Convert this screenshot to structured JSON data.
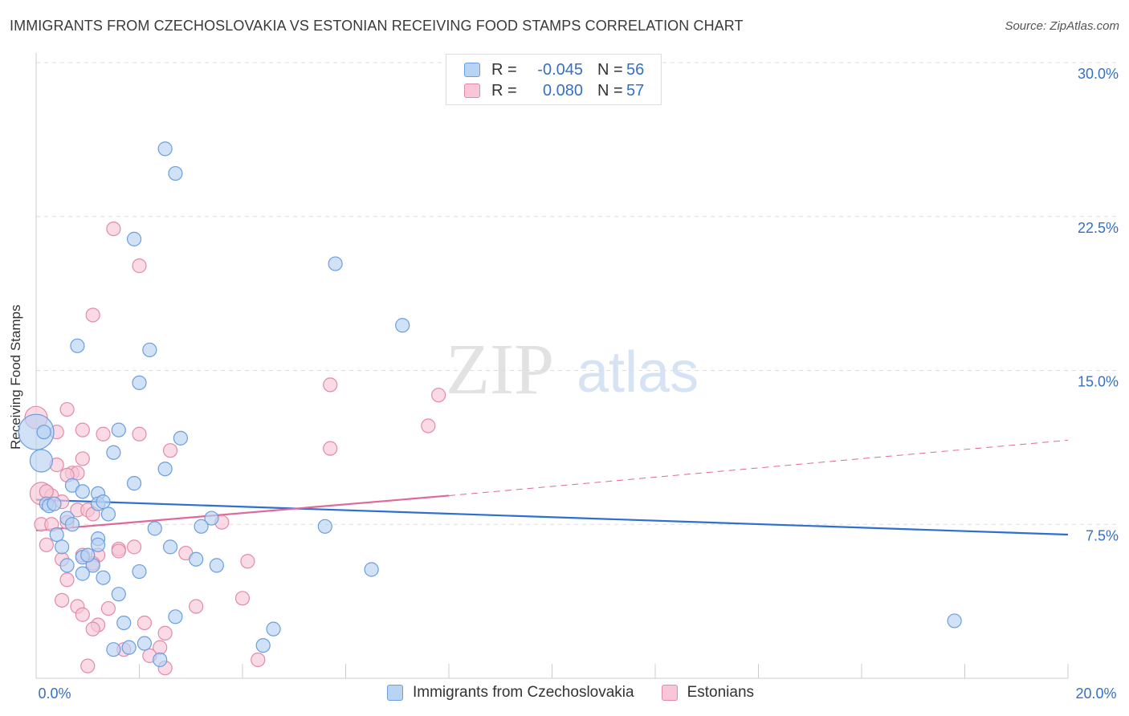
{
  "header": {
    "title": "IMMIGRANTS FROM CZECHOSLOVAKIA VS ESTONIAN RECEIVING FOOD STAMPS CORRELATION CHART",
    "source": "Source: ZipAtlas.com"
  },
  "watermark": {
    "part1": "ZIP",
    "part2": "atlas"
  },
  "legend": {
    "rows": [
      {
        "r_label": "R =",
        "r_value": "-0.045",
        "n_label": "N =",
        "n_value": "56"
      },
      {
        "r_label": "R =",
        "r_value": "0.080",
        "n_label": "N =",
        "n_value": "57"
      }
    ]
  },
  "colors": {
    "series1_fill": "#b9d3f3",
    "series1_stroke": "#6a9ee0",
    "series1_line": "#2f6fd0",
    "series2_fill": "#f8c6d5",
    "series2_stroke": "#e48aa8",
    "series2_line": "#e0689a",
    "tick_text": "#3670c4",
    "grid": "#dddddd"
  },
  "chart_data": {
    "type": "scatter",
    "title": "IMMIGRANTS FROM CZECHOSLOVAKIA VS ESTONIAN RECEIVING FOOD STAMPS CORRELATION CHART",
    "xlabel": "",
    "ylabel": "Receiving Food Stamps",
    "xlim": [
      0,
      20
    ],
    "ylim": [
      0,
      30
    ],
    "x_tick_labels": [
      "0.0%",
      "20.0%"
    ],
    "y_ticks": [
      7.5,
      15.0,
      22.5,
      30.0
    ],
    "y_tick_labels": [
      "7.5%",
      "15.0%",
      "22.5%",
      "30.0%"
    ],
    "grid": true,
    "legend_position": "top-center",
    "series": [
      {
        "name": "Immigrants from Czechoslovakia",
        "r": -0.045,
        "n": 56,
        "trend": {
          "x0": 0,
          "y0": 8.7,
          "x1": 20,
          "y1": 7.0
        },
        "points": [
          [
            2.5,
            25.8
          ],
          [
            2.7,
            24.6
          ],
          [
            1.9,
            21.4
          ],
          [
            5.8,
            20.2
          ],
          [
            7.1,
            17.2
          ],
          [
            0.8,
            16.2
          ],
          [
            2.2,
            16.0
          ],
          [
            2.0,
            14.4
          ],
          [
            1.6,
            12.1
          ],
          [
            2.8,
            11.7
          ],
          [
            0.0,
            12.0
          ],
          [
            1.5,
            11.0
          ],
          [
            0.1,
            10.6
          ],
          [
            2.5,
            10.2
          ],
          [
            1.9,
            9.5
          ],
          [
            0.7,
            9.4
          ],
          [
            0.9,
            9.1
          ],
          [
            1.2,
            9.0
          ],
          [
            0.2,
            8.5
          ],
          [
            1.2,
            8.5
          ],
          [
            1.3,
            8.6
          ],
          [
            1.4,
            8.0
          ],
          [
            0.6,
            7.8
          ],
          [
            3.4,
            7.8
          ],
          [
            0.4,
            7.0
          ],
          [
            2.3,
            7.3
          ],
          [
            3.2,
            7.4
          ],
          [
            5.6,
            7.4
          ],
          [
            1.2,
            6.8
          ],
          [
            1.2,
            6.5
          ],
          [
            0.5,
            6.4
          ],
          [
            2.6,
            6.4
          ],
          [
            0.6,
            5.5
          ],
          [
            0.9,
            5.9
          ],
          [
            3.1,
            5.8
          ],
          [
            1.1,
            5.5
          ],
          [
            3.5,
            5.5
          ],
          [
            6.5,
            5.3
          ],
          [
            2.0,
            5.2
          ],
          [
            0.9,
            5.1
          ],
          [
            1.3,
            4.9
          ],
          [
            1.6,
            4.1
          ],
          [
            2.7,
            3.0
          ],
          [
            1.7,
            2.7
          ],
          [
            4.6,
            2.4
          ],
          [
            17.8,
            2.8
          ],
          [
            1.5,
            1.4
          ],
          [
            2.1,
            1.7
          ],
          [
            2.4,
            0.9
          ],
          [
            4.4,
            1.6
          ],
          [
            0.25,
            8.4
          ],
          [
            0.35,
            8.5
          ],
          [
            1.8,
            1.5
          ],
          [
            0.7,
            7.5
          ],
          [
            1.0,
            6.0
          ],
          [
            0.15,
            12.0
          ]
        ],
        "sizes": [
          1,
          1,
          1,
          1,
          1,
          1,
          1,
          1,
          1,
          1,
          3,
          1,
          2,
          1,
          1,
          1,
          1,
          1,
          1,
          1,
          1,
          1,
          1,
          1,
          1,
          1,
          1,
          1,
          1,
          1,
          1,
          1,
          1,
          1,
          1,
          1,
          1,
          1,
          1,
          1,
          1,
          1,
          1,
          1,
          1,
          1,
          1,
          1,
          1,
          1,
          1,
          1,
          1,
          1,
          1,
          1
        ]
      },
      {
        "name": "Estonians",
        "r": 0.08,
        "n": 57,
        "trend": {
          "x0": 0,
          "y0": 7.2,
          "x1": 8.0,
          "y1": 8.9,
          "dash_x1": 20,
          "dash_y1": 11.6
        },
        "points": [
          [
            1.5,
            21.9
          ],
          [
            2.0,
            20.1
          ],
          [
            1.1,
            17.7
          ],
          [
            5.7,
            14.3
          ],
          [
            7.8,
            13.8
          ],
          [
            0.6,
            13.1
          ],
          [
            7.6,
            12.3
          ],
          [
            0.0,
            12.7
          ],
          [
            1.3,
            11.9
          ],
          [
            2.0,
            11.9
          ],
          [
            0.9,
            12.1
          ],
          [
            0.4,
            12.0
          ],
          [
            2.6,
            11.1
          ],
          [
            5.7,
            11.2
          ],
          [
            0.9,
            10.7
          ],
          [
            0.4,
            10.4
          ],
          [
            0.7,
            10.0
          ],
          [
            0.8,
            10.0
          ],
          [
            0.1,
            9.0
          ],
          [
            0.3,
            8.9
          ],
          [
            0.5,
            8.6
          ],
          [
            0.8,
            8.2
          ],
          [
            1.0,
            8.2
          ],
          [
            0.1,
            7.5
          ],
          [
            0.6,
            7.6
          ],
          [
            3.6,
            7.6
          ],
          [
            0.3,
            7.5
          ],
          [
            0.2,
            6.5
          ],
          [
            1.6,
            6.3
          ],
          [
            1.6,
            6.2
          ],
          [
            1.9,
            6.4
          ],
          [
            2.9,
            6.1
          ],
          [
            0.9,
            6.0
          ],
          [
            1.2,
            6.0
          ],
          [
            0.5,
            5.8
          ],
          [
            4.1,
            5.7
          ],
          [
            0.6,
            4.8
          ],
          [
            1.1,
            5.6
          ],
          [
            0.5,
            3.8
          ],
          [
            0.8,
            3.5
          ],
          [
            1.4,
            3.4
          ],
          [
            3.1,
            3.5
          ],
          [
            4.0,
            3.9
          ],
          [
            0.9,
            3.1
          ],
          [
            1.2,
            2.6
          ],
          [
            2.1,
            2.7
          ],
          [
            1.1,
            2.4
          ],
          [
            2.5,
            2.2
          ],
          [
            1.7,
            1.4
          ],
          [
            2.4,
            1.5
          ],
          [
            2.2,
            1.1
          ],
          [
            1.0,
            0.6
          ],
          [
            2.5,
            0.5
          ],
          [
            4.3,
            0.9
          ],
          [
            0.6,
            9.9
          ],
          [
            1.1,
            8.0
          ],
          [
            0.2,
            9.1
          ]
        ],
        "sizes": [
          1,
          1,
          1,
          1,
          1,
          1,
          1,
          2,
          1,
          1,
          1,
          1,
          1,
          1,
          1,
          1,
          1,
          1,
          2,
          1,
          1,
          1,
          1,
          1,
          1,
          1,
          1,
          1,
          1,
          1,
          1,
          1,
          1,
          1,
          1,
          1,
          1,
          1,
          1,
          1,
          1,
          1,
          1,
          1,
          1,
          1,
          1,
          1,
          1,
          1,
          1,
          1,
          1,
          1,
          1,
          1,
          1
        ]
      }
    ]
  }
}
